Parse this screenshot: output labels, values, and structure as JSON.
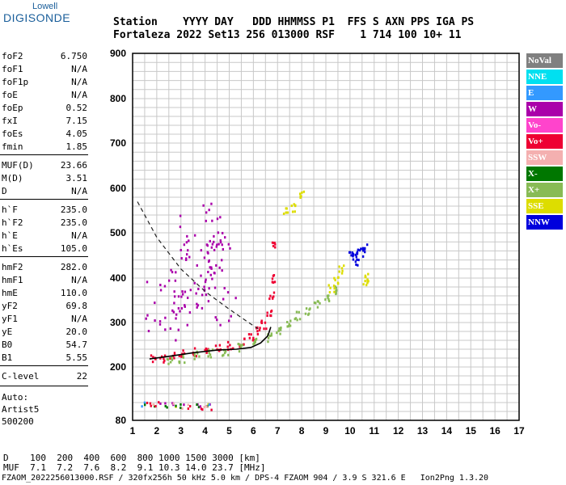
{
  "logo": {
    "top": "Lowell",
    "main": "DIGISONDE"
  },
  "header": {
    "line1": "Station    YYYY DAY   DDD HHMMSS P1  FFS S AXN PPS IGA PS",
    "line2": "Fortaleza 2022 Set13 256 013000 RSF    1 714 100 10+ 11"
  },
  "params": [
    {
      "label": "foF2",
      "value": "6.750"
    },
    {
      "label": "foF1",
      "value": "N/A"
    },
    {
      "label": "foF1p",
      "value": "N/A"
    },
    {
      "label": "foE",
      "value": "N/A"
    },
    {
      "label": "foEp",
      "value": "0.52"
    },
    {
      "label": "fxI",
      "value": "7.15"
    },
    {
      "label": "foEs",
      "value": "4.05"
    },
    {
      "label": "fmin",
      "value": "1.85"
    },
    {
      "label": "MUF(D)",
      "value": "23.66"
    },
    {
      "label": "M(D)",
      "value": "3.51"
    },
    {
      "label": "D",
      "value": "N/A"
    },
    {
      "label": "h`F",
      "value": "235.0"
    },
    {
      "label": "h`F2",
      "value": "235.0"
    },
    {
      "label": "h`E",
      "value": "N/A"
    },
    {
      "label": "h`Es",
      "value": "105.0"
    },
    {
      "label": "hmF2",
      "value": "282.0"
    },
    {
      "label": "hmF1",
      "value": "N/A"
    },
    {
      "label": "hmE",
      "value": "110.0"
    },
    {
      "label": "yF2",
      "value": "69.8"
    },
    {
      "label": "yF1",
      "value": "N/A"
    },
    {
      "label": "yE",
      "value": "20.0"
    },
    {
      "label": "B0",
      "value": "54.7"
    },
    {
      "label": "B1",
      "value": "5.55"
    },
    {
      "label": "C-level",
      "value": "22"
    }
  ],
  "side_footer": {
    "auto": "Auto:",
    "artist": "Artist5",
    "version": "500200"
  },
  "legend": [
    {
      "label": "NoVal",
      "color": "#808080"
    },
    {
      "label": "NNE",
      "color": "#00e0f0"
    },
    {
      "label": "E",
      "color": "#3399ff"
    },
    {
      "label": "W",
      "color": "#aa00aa"
    },
    {
      "label": "Vo-",
      "color": "#ff44cc"
    },
    {
      "label": "Vo+",
      "color": "#ee0033"
    },
    {
      "label": "SSW",
      "color": "#f4b0b0"
    },
    {
      "label": "X-",
      "color": "#007700"
    },
    {
      "label": "X+",
      "color": "#88bb55"
    },
    {
      "label": "SSE",
      "color": "#dddd00"
    },
    {
      "label": "NNW",
      "color": "#0000dd"
    }
  ],
  "footer": {
    "line1": "D    100  200  400  600  800 1000 1500 3000 [km]",
    "line2": "MUF  7.1  7.2  7.6  8.2  9.1 10.3 14.0 23.7 [MHz]",
    "line3": "FZAOM_2022256013000.RSF / 320fx256h 50 kHz 5.0 km / DPS-4 FZAOM 904 / 3.9 S 321.6 E   Ion2Png 1.3.20"
  },
  "chart_data": {
    "type": "scatter",
    "xlim": [
      1,
      17
    ],
    "ylim": [
      80,
      900
    ],
    "x_ticks": [
      1,
      2,
      3,
      4,
      5,
      6,
      7,
      8,
      9,
      10,
      11,
      12,
      13,
      14,
      15,
      16,
      17
    ],
    "y_ticks": [
      80,
      200,
      300,
      400,
      500,
      600,
      700,
      800,
      900
    ],
    "grid": true,
    "legend_placement": "right",
    "series": [
      {
        "name": "Vo+",
        "values": [
          [
            1.85,
            220
          ],
          [
            2.2,
            222
          ],
          [
            2.6,
            226
          ],
          [
            3.0,
            232
          ],
          [
            3.5,
            236
          ],
          [
            4.0,
            240
          ],
          [
            4.5,
            244
          ],
          [
            5.0,
            250
          ],
          [
            5.5,
            258
          ],
          [
            5.9,
            268
          ],
          [
            6.2,
            282
          ],
          [
            6.4,
            298
          ],
          [
            6.6,
            320
          ],
          [
            6.7,
            360
          ],
          [
            6.75,
            400
          ],
          [
            6.8,
            480
          ]
        ]
      },
      {
        "name": "X+",
        "values": [
          [
            2.5,
            215
          ],
          [
            3.0,
            222
          ],
          [
            3.6,
            228
          ],
          [
            4.2,
            232
          ],
          [
            4.8,
            238
          ],
          [
            5.4,
            246
          ],
          [
            6.0,
            256
          ],
          [
            6.6,
            268
          ],
          [
            7.0,
            285
          ],
          [
            7.4,
            300
          ],
          [
            7.8,
            318
          ],
          [
            8.2,
            330
          ],
          [
            8.6,
            345
          ],
          [
            9.0,
            360
          ],
          [
            9.3,
            375
          ]
        ]
      },
      {
        "name": "W",
        "values": [
          [
            1.9,
            340
          ],
          [
            2.5,
            360
          ],
          [
            3.0,
            380
          ],
          [
            3.4,
            400
          ],
          [
            3.8,
            420
          ],
          [
            4.2,
            440
          ],
          [
            4.6,
            460
          ],
          [
            3.3,
            500
          ],
          [
            3.9,
            520
          ],
          [
            4.4,
            480
          ],
          [
            2.8,
            320
          ],
          [
            4.0,
            360
          ],
          [
            4.8,
            340
          ]
        ]
      },
      {
        "name": "SSE",
        "values": [
          [
            9.2,
            380
          ],
          [
            9.4,
            400
          ],
          [
            9.6,
            420
          ],
          [
            10.6,
            395
          ],
          [
            10.7,
            405
          ],
          [
            7.6,
            560
          ],
          [
            8.0,
            590
          ],
          [
            7.3,
            550
          ]
        ]
      },
      {
        "name": "NNW",
        "values": [
          [
            10.0,
            450
          ],
          [
            10.2,
            455
          ],
          [
            10.4,
            460
          ],
          [
            10.6,
            470
          ],
          [
            10.3,
            440
          ]
        ]
      },
      {
        "name": "Es",
        "values": [
          [
            1.5,
            120
          ],
          [
            2.0,
            118
          ],
          [
            2.5,
            116
          ],
          [
            3.0,
            115
          ],
          [
            3.5,
            114
          ],
          [
            4.0,
            113
          ],
          [
            4.05,
            112
          ]
        ]
      }
    ],
    "model_curve": {
      "dashed": [
        [
          1.2,
          570
        ],
        [
          2.0,
          490
        ],
        [
          3.0,
          420
        ],
        [
          4.0,
          370
        ],
        [
          5.0,
          330
        ],
        [
          5.8,
          300
        ],
        [
          6.2,
          286
        ]
      ],
      "solid": [
        [
          1.7,
          218
        ],
        [
          2.5,
          224
        ],
        [
          3.5,
          232
        ],
        [
          4.5,
          238
        ],
        [
          5.3,
          240
        ],
        [
          5.9,
          244
        ],
        [
          6.3,
          254
        ],
        [
          6.6,
          270
        ],
        [
          6.72,
          290
        ]
      ]
    }
  }
}
